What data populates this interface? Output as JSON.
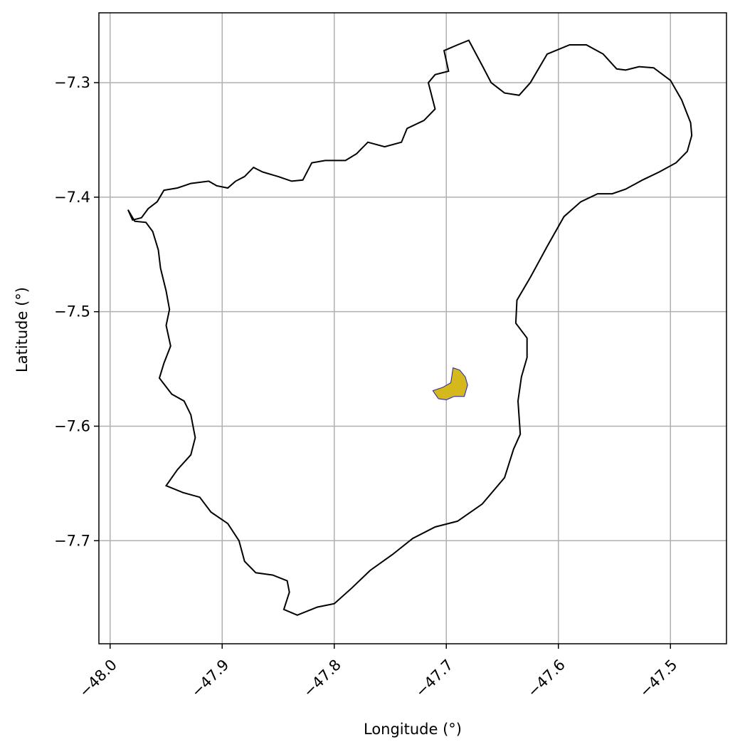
{
  "chart_data": {
    "type": "map",
    "xlabel": "Longitude (°)",
    "ylabel": "Latitude (°)",
    "xlim": [
      -48.01,
      -47.45
    ],
    "ylim": [
      -7.79,
      -7.239
    ],
    "xticks": [
      {
        "value": -48.0,
        "label": "−48.0"
      },
      {
        "value": -47.9,
        "label": "−47.9"
      },
      {
        "value": -47.8,
        "label": "−47.8"
      },
      {
        "value": -47.7,
        "label": "−47.7"
      },
      {
        "value": -47.6,
        "label": "−47.6"
      },
      {
        "value": -47.5,
        "label": "−47.5"
      }
    ],
    "yticks": [
      {
        "value": -7.3,
        "label": "−7.3"
      },
      {
        "value": -7.4,
        "label": "−7.4"
      },
      {
        "value": -7.5,
        "label": "−7.5"
      },
      {
        "value": -7.6,
        "label": "−7.6"
      },
      {
        "value": -7.7,
        "label": "−7.7"
      }
    ],
    "grid": true,
    "colors": {
      "grid": "#b0b0b0",
      "boundary": "#000000",
      "area_fill": "#d4b81c",
      "area_edge": "#1f1fbf"
    },
    "boundary": [
      [
        -47.984,
        -7.411
      ],
      [
        -47.98,
        -7.42
      ],
      [
        -47.972,
        -7.418
      ],
      [
        -47.966,
        -7.41
      ],
      [
        -47.958,
        -7.404
      ],
      [
        -47.952,
        -7.394
      ],
      [
        -47.94,
        -7.392
      ],
      [
        -47.928,
        -7.388
      ],
      [
        -47.912,
        -7.386
      ],
      [
        -47.905,
        -7.39
      ],
      [
        -47.895,
        -7.392
      ],
      [
        -47.888,
        -7.386
      ],
      [
        -47.88,
        -7.382
      ],
      [
        -47.872,
        -7.374
      ],
      [
        -47.864,
        -7.378
      ],
      [
        -47.85,
        -7.382
      ],
      [
        -47.838,
        -7.386
      ],
      [
        -47.828,
        -7.385
      ],
      [
        -47.82,
        -7.37
      ],
      [
        -47.808,
        -7.368
      ],
      [
        -47.79,
        -7.368
      ],
      [
        -47.78,
        -7.362
      ],
      [
        -47.77,
        -7.352
      ],
      [
        -47.755,
        -7.356
      ],
      [
        -47.74,
        -7.352
      ],
      [
        -47.735,
        -7.34
      ],
      [
        -47.72,
        -7.333
      ],
      [
        -47.71,
        -7.323
      ],
      [
        -47.716,
        -7.3
      ],
      [
        -47.71,
        -7.293
      ],
      [
        -47.698,
        -7.29
      ],
      [
        -47.702,
        -7.272
      ],
      [
        -47.69,
        -7.267
      ],
      [
        -47.68,
        -7.263
      ],
      [
        -47.668,
        -7.285
      ],
      [
        -47.66,
        -7.3
      ],
      [
        -47.648,
        -7.309
      ],
      [
        -47.635,
        -7.311
      ],
      [
        -47.625,
        -7.3
      ],
      [
        -47.61,
        -7.275
      ],
      [
        -47.59,
        -7.267
      ],
      [
        -47.575,
        -7.267
      ],
      [
        -47.56,
        -7.275
      ],
      [
        -47.548,
        -7.288
      ],
      [
        -47.54,
        -7.289
      ],
      [
        -47.528,
        -7.286
      ],
      [
        -47.515,
        -7.287
      ],
      [
        -47.5,
        -7.298
      ],
      [
        -47.49,
        -7.315
      ],
      [
        -47.482,
        -7.335
      ],
      [
        -47.481,
        -7.346
      ],
      [
        -47.485,
        -7.36
      ],
      [
        -47.495,
        -7.37
      ],
      [
        -47.51,
        -7.378
      ],
      [
        -47.525,
        -7.385
      ],
      [
        -47.54,
        -7.393
      ],
      [
        -47.552,
        -7.397
      ],
      [
        -47.565,
        -7.397
      ],
      [
        -47.58,
        -7.404
      ],
      [
        -47.595,
        -7.417
      ],
      [
        -47.61,
        -7.443
      ],
      [
        -47.625,
        -7.47
      ],
      [
        -47.637,
        -7.49
      ],
      [
        -47.638,
        -7.51
      ],
      [
        -47.628,
        -7.523
      ],
      [
        -47.628,
        -7.54
      ],
      [
        -47.633,
        -7.557
      ],
      [
        -47.636,
        -7.578
      ],
      [
        -47.634,
        -7.607
      ],
      [
        -47.64,
        -7.62
      ],
      [
        -47.648,
        -7.645
      ],
      [
        -47.668,
        -7.668
      ],
      [
        -47.69,
        -7.683
      ],
      [
        -47.71,
        -7.688
      ],
      [
        -47.73,
        -7.698
      ],
      [
        -47.748,
        -7.712
      ],
      [
        -47.768,
        -7.726
      ],
      [
        -47.784,
        -7.741
      ],
      [
        -47.8,
        -7.755
      ],
      [
        -47.815,
        -7.758
      ],
      [
        -47.833,
        -7.765
      ],
      [
        -47.845,
        -7.76
      ],
      [
        -47.84,
        -7.745
      ],
      [
        -47.842,
        -7.735
      ],
      [
        -47.855,
        -7.73
      ],
      [
        -47.87,
        -7.728
      ],
      [
        -47.88,
        -7.718
      ],
      [
        -47.885,
        -7.7
      ],
      [
        -47.895,
        -7.685
      ],
      [
        -47.91,
        -7.675
      ],
      [
        -47.92,
        -7.662
      ],
      [
        -47.935,
        -7.658
      ],
      [
        -47.95,
        -7.652
      ],
      [
        -47.94,
        -7.638
      ],
      [
        -47.928,
        -7.625
      ],
      [
        -47.924,
        -7.61
      ],
      [
        -47.928,
        -7.59
      ],
      [
        -47.934,
        -7.578
      ],
      [
        -47.945,
        -7.572
      ],
      [
        -47.956,
        -7.558
      ],
      [
        -47.952,
        -7.545
      ],
      [
        -47.946,
        -7.53
      ],
      [
        -47.95,
        -7.512
      ],
      [
        -47.947,
        -7.498
      ],
      [
        -47.95,
        -7.482
      ],
      [
        -47.955,
        -7.462
      ],
      [
        -47.957,
        -7.446
      ],
      [
        -47.962,
        -7.43
      ],
      [
        -47.968,
        -7.422
      ],
      [
        -47.978,
        -7.421
      ],
      [
        -47.984,
        -7.411
      ]
    ],
    "highlighted_area": [
      [
        -47.694,
        -7.549
      ],
      [
        -47.688,
        -7.551
      ],
      [
        -47.683,
        -7.557
      ],
      [
        -47.681,
        -7.564
      ],
      [
        -47.684,
        -7.574
      ],
      [
        -47.693,
        -7.574
      ],
      [
        -47.7,
        -7.577
      ],
      [
        -47.707,
        -7.576
      ],
      [
        -47.712,
        -7.569
      ],
      [
        -47.703,
        -7.566
      ],
      [
        -47.696,
        -7.562
      ],
      [
        -47.694,
        -7.549
      ]
    ]
  }
}
